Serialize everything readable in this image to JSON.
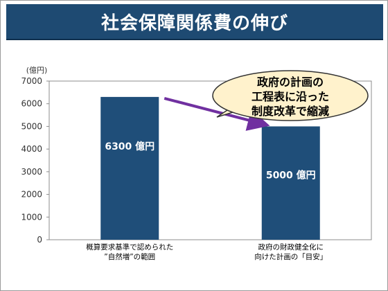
{
  "title": "社会保障関係費の伸び",
  "callout": {
    "lines": [
      "政府の計画の",
      "工程表に沿った",
      "制度改革で縮減"
    ]
  },
  "colors": {
    "bar": "#1f4e79",
    "banner": "#1e4a72",
    "arrow": "#7030a0",
    "bubble": "#fff2cc"
  },
  "chart_data": {
    "type": "bar",
    "ylabel": "(億円)",
    "ylim": [
      0,
      7000
    ],
    "yticks": [
      0,
      1000,
      2000,
      3000,
      4000,
      5000,
      6000,
      7000
    ],
    "categories": [
      [
        "概算要求基準で認められた",
        "”自然増”の範囲"
      ],
      [
        "政府の財政健全化に",
        "向けた計画の「目安」"
      ]
    ],
    "values": [
      6300,
      5000
    ],
    "data_labels": [
      "6300 億円",
      "5000 億円"
    ],
    "grid": false
  }
}
